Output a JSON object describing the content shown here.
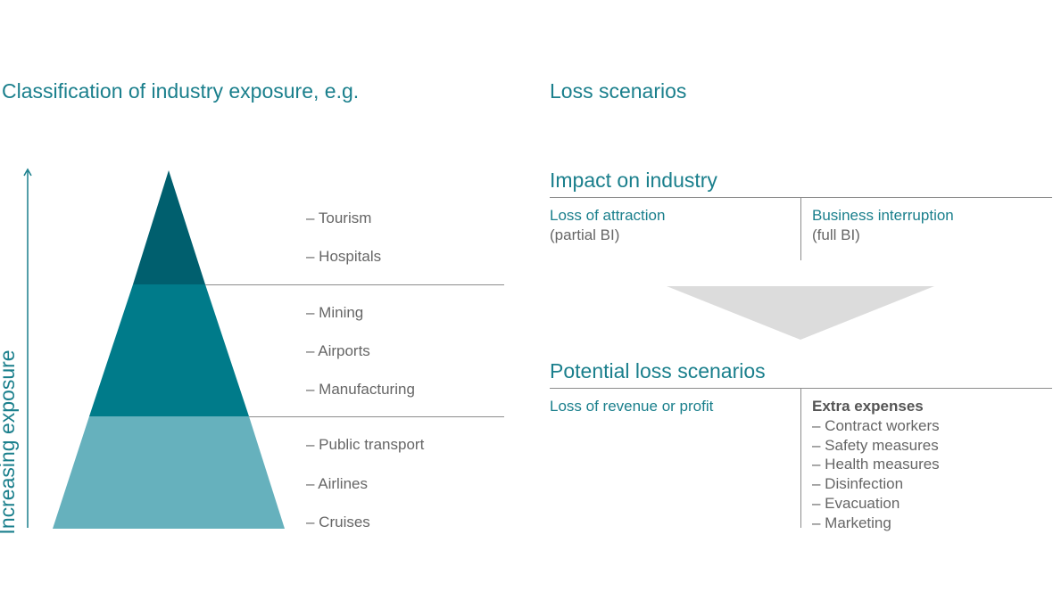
{
  "left": {
    "title": "Classification of industry exposure, e.g.",
    "axis_label": "Increasing exposure",
    "tiers": [
      {
        "color": "#005f6e",
        "items": [
          "– Tourism",
          "– Hospitals"
        ]
      },
      {
        "color": "#007b8a",
        "items": [
          "– Mining",
          "– Airports",
          "– Manufacturing"
        ]
      },
      {
        "color": "#66b1bd",
        "items": [
          "– Public transport",
          "– Airlines",
          "– Cruises"
        ]
      }
    ]
  },
  "right": {
    "title": "Loss scenarios",
    "impact": {
      "heading": "Impact on industry",
      "left_label": "Loss of attraction",
      "left_sub": "(partial BI)",
      "right_label": "Business interruption",
      "right_sub": "(full BI)"
    },
    "potential": {
      "heading": "Potential loss scenarios",
      "left_label": "Loss of revenue or profit",
      "right_heading": "Extra expenses",
      "expenses": [
        "– Contract workers",
        "– Safety measures",
        "– Health measures",
        "– Disinfection",
        "– Evacuation",
        "– Marketing"
      ]
    }
  },
  "colors": {
    "accent": "#1a7f8c",
    "text": "#666666",
    "arrow": "#dcdcdc",
    "rule": "#8c8c8c"
  }
}
